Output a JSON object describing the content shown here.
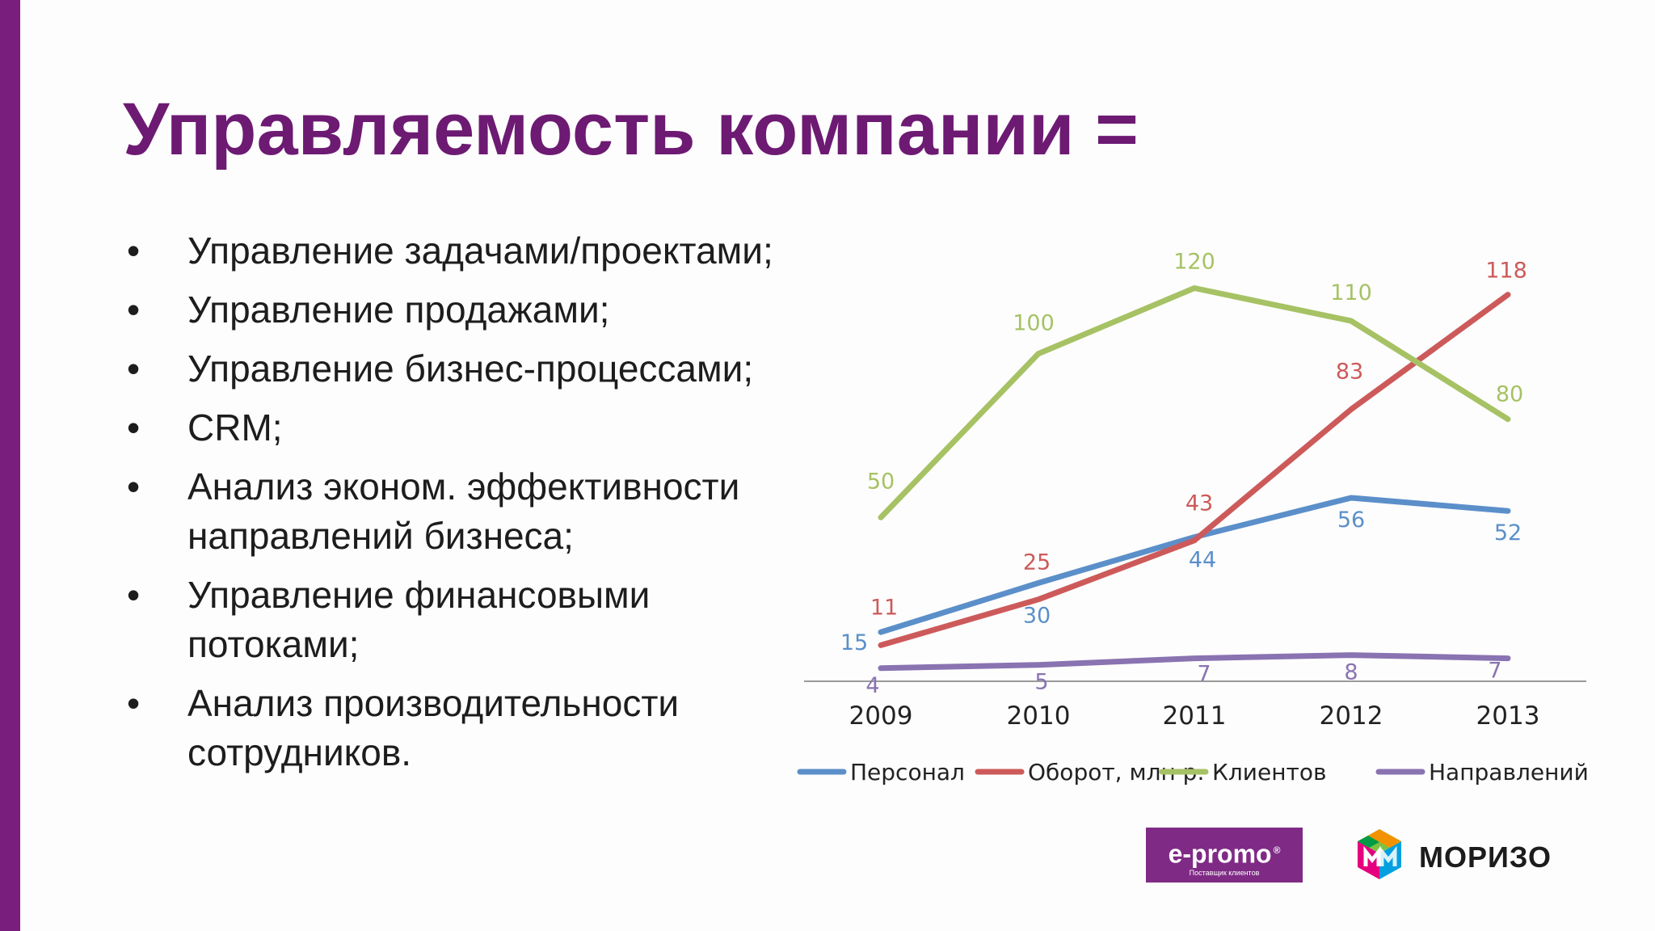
{
  "slide": {
    "title": "Управляемость компании =",
    "bullets": [
      "Управление задачами/проектами;",
      "Управление продажами;",
      "Управление бизнес-процессами;",
      "CRM;",
      "Анализ эконом. эффективности направлений бизнеса;",
      "Управление финансовыми потоками;",
      "Анализ производительности сотрудников."
    ],
    "bullet_symbol": "•",
    "accent_color": "#7a1e7e"
  },
  "chart_data": {
    "type": "line",
    "title": "",
    "xlabel": "",
    "ylabel": "",
    "categories": [
      "2009",
      "2010",
      "2011",
      "2012",
      "2013"
    ],
    "ylim": [
      0,
      130
    ],
    "grid": false,
    "legend_position": "bottom",
    "series": [
      {
        "name": "Персонал",
        "color": "#5b8fc9",
        "values": [
          15,
          30,
          44,
          56,
          52
        ]
      },
      {
        "name": "Оборот, млн р.",
        "color": "#cd5a5a",
        "values": [
          11,
          25,
          43,
          83,
          118
        ]
      },
      {
        "name": "Клиентов",
        "color": "#a6c264",
        "values": [
          50,
          100,
          120,
          110,
          80
        ]
      },
      {
        "name": "Направлений",
        "color": "#8a73b1",
        "values": [
          4,
          5,
          7,
          8,
          7
        ]
      }
    ]
  },
  "logos": {
    "epromo": {
      "brand": "e-promo",
      "reg": "®",
      "tagline": "Поставщик клиентов",
      "color": "#7f2b86"
    },
    "morizo": {
      "text": "МОРИЗО"
    }
  }
}
